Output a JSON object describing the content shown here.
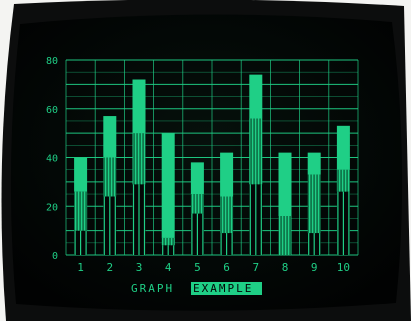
{
  "colors": {
    "phosphor": "#1fcf86",
    "phosphor_dim": "#0e7a4c",
    "screen": "#030706",
    "bezel": "#0c0d0d",
    "background": "#f4f4f2"
  },
  "chart_data": {
    "type": "bar",
    "title": "GRAPH EXAMPLE",
    "title_parts": [
      "GRAPH",
      "EXAMPLE"
    ],
    "xlabel": "",
    "ylabel": "",
    "categories": [
      "1",
      "2",
      "3",
      "4",
      "5",
      "6",
      "7",
      "8",
      "9",
      "10"
    ],
    "ylim": [
      0,
      80
    ],
    "yticks": [
      0,
      20,
      40,
      60,
      80
    ],
    "grid": true,
    "legend": "none",
    "stacked": true,
    "series": [
      {
        "values": [
          10,
          24,
          29,
          4,
          17,
          9,
          29,
          0,
          9,
          26
        ]
      },
      {
        "values": [
          16,
          16,
          21,
          3,
          8,
          15,
          27,
          16,
          24,
          9
        ]
      },
      {
        "values": [
          14,
          17,
          22,
          43,
          13,
          18,
          18,
          26,
          9,
          18
        ]
      }
    ]
  }
}
